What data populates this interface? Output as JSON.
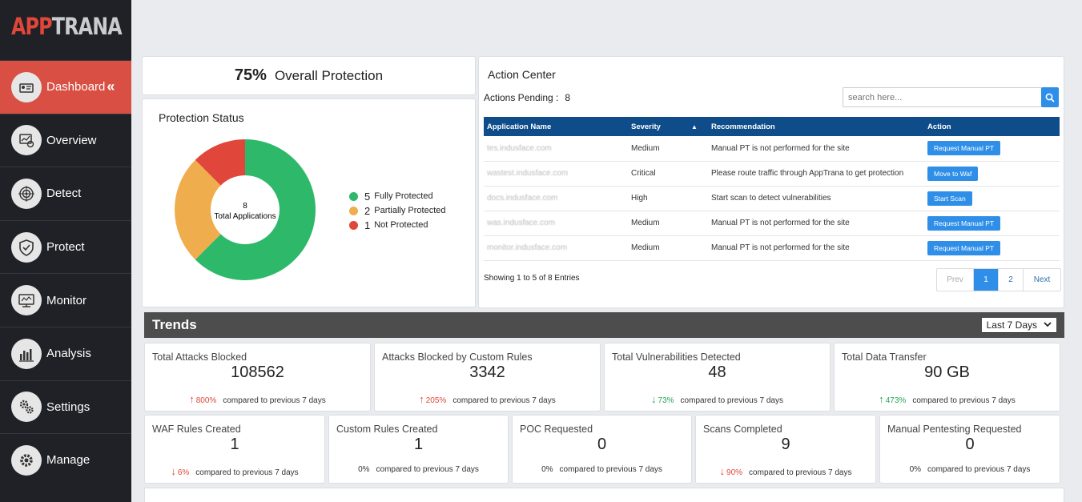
{
  "brand": {
    "part1": "APP",
    "part2": "TRANA"
  },
  "nav": [
    {
      "label": "Dashboard",
      "icon": "dashboard-icon",
      "active": true
    },
    {
      "label": "Overview",
      "icon": "overview-icon"
    },
    {
      "label": "Detect",
      "icon": "target-icon"
    },
    {
      "label": "Protect",
      "icon": "shield-icon"
    },
    {
      "label": "Monitor",
      "icon": "monitor-icon"
    },
    {
      "label": "Analysis",
      "icon": "bar-chart-icon"
    },
    {
      "label": "Settings",
      "icon": "gear-icon"
    },
    {
      "label": "Manage",
      "icon": "cog-icon"
    }
  ],
  "overall": {
    "percent": "75%",
    "label": "Overall Protection"
  },
  "protection": {
    "title": "Protection Status",
    "total": "8",
    "total_label": "Total Applications",
    "legend": [
      {
        "count": "5",
        "label": "Fully Protected",
        "color": "#2eb86a",
        "value": 5
      },
      {
        "count": "2",
        "label": "Partially Protected",
        "color": "#f0ad4e",
        "value": 2
      },
      {
        "count": "1",
        "label": "Not Protected",
        "color": "#e0463a",
        "value": 1
      }
    ]
  },
  "action_center": {
    "title": "Action Center",
    "pending_label": "Actions Pending :",
    "pending_count": "8",
    "search_placeholder": "search here...",
    "columns": [
      "Application Name",
      "Severity",
      "Recommendation",
      "Action"
    ],
    "rows": [
      {
        "app": "tes.indusface.com",
        "severity": "Medium",
        "recommendation": "Manual PT is not performed for the site",
        "action": "Request Manual PT"
      },
      {
        "app": "wastest.indusface.com",
        "severity": "Critical",
        "recommendation": "Please route traffic through AppTrana to get protection",
        "action": "Move to Waf"
      },
      {
        "app": "docs.indusface.com",
        "severity": "High",
        "recommendation": "Start scan to detect vulnerabilities",
        "action": "Start Scan"
      },
      {
        "app": "was.indusface.com",
        "severity": "Medium",
        "recommendation": "Manual PT is not performed for the site",
        "action": "Request Manual PT"
      },
      {
        "app": "monitor.indusface.com",
        "severity": "Medium",
        "recommendation": "Manual PT is not performed for the site",
        "action": "Request Manual PT"
      }
    ],
    "showing": "Showing 1 to 5 of 8 Entries",
    "pager": {
      "prev": "Prev",
      "pages": [
        "1",
        "2"
      ],
      "next": "Next"
    }
  },
  "trends": {
    "title": "Trends",
    "period": "Last 7 Days",
    "row1": [
      {
        "label": "Total Attacks Blocked",
        "value": "108562",
        "dir": "up",
        "pct": "800%",
        "cmp": "compared to previous 7 days"
      },
      {
        "label": "Attacks Blocked by Custom Rules",
        "value": "3342",
        "dir": "up",
        "pct": "205%",
        "cmp": "compared to previous 7 days"
      },
      {
        "label": "Total Vulnerabilities Detected",
        "value": "48",
        "dir": "down",
        "pct": "73%",
        "cmp": "compared to previous 7 days"
      },
      {
        "label": "Total Data Transfer",
        "value": "90 GB",
        "dir": "up-green",
        "pct": "473%",
        "cmp": "compared to previous 7 days"
      }
    ],
    "row2": [
      {
        "label": "WAF Rules Created",
        "value": "1",
        "dir": "down-red",
        "pct": "6%",
        "cmp": "compared to previous 7 days"
      },
      {
        "label": "Custom Rules Created",
        "value": "1",
        "dir": "none",
        "pct": "0%",
        "cmp": "compared to previous 7 days"
      },
      {
        "label": "POC Requested",
        "value": "0",
        "dir": "none",
        "pct": "0%",
        "cmp": "compared to previous 7 days"
      },
      {
        "label": "Scans Completed",
        "value": "9",
        "dir": "down-red",
        "pct": "90%",
        "cmp": "compared to previous 7 days"
      },
      {
        "label": "Manual Pentesting Requested",
        "value": "0",
        "dir": "none",
        "pct": "0%",
        "cmp": "compared to previous 7 days"
      }
    ]
  }
}
